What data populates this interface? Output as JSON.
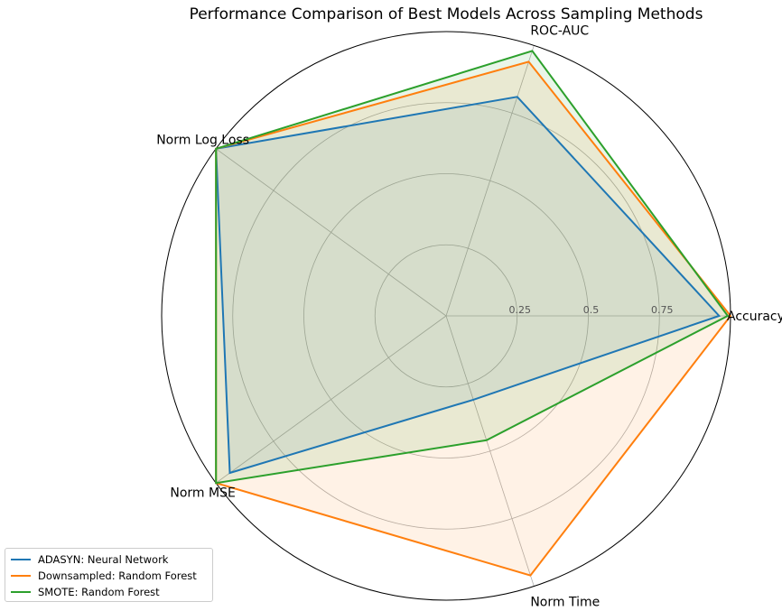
{
  "chart_data": {
    "type": "radar",
    "title": "Performance Comparison of Best Models Across Sampling Methods",
    "axes": [
      "Accuracy",
      "ROC-AUC",
      "Norm Log Loss",
      "Norm MSE",
      "Norm Time"
    ],
    "rticks": [
      "0.25",
      "0.5",
      "0.75"
    ],
    "rlim": [
      0,
      1
    ],
    "legend_position": "lower-left",
    "series": [
      {
        "name": "ADASYN: Neural Network",
        "color": "#1f77b4",
        "values": [
          0.96,
          0.81,
          1.0,
          0.94,
          0.31
        ]
      },
      {
        "name": "Downsampled: Random Forest",
        "color": "#ff7f0e",
        "values": [
          1.0,
          0.94,
          1.0,
          1.0,
          0.96
        ]
      },
      {
        "name": "SMOTE: Random Forest",
        "color": "#2ca02c",
        "values": [
          0.99,
          0.98,
          1.0,
          1.0,
          0.46
        ]
      }
    ]
  }
}
